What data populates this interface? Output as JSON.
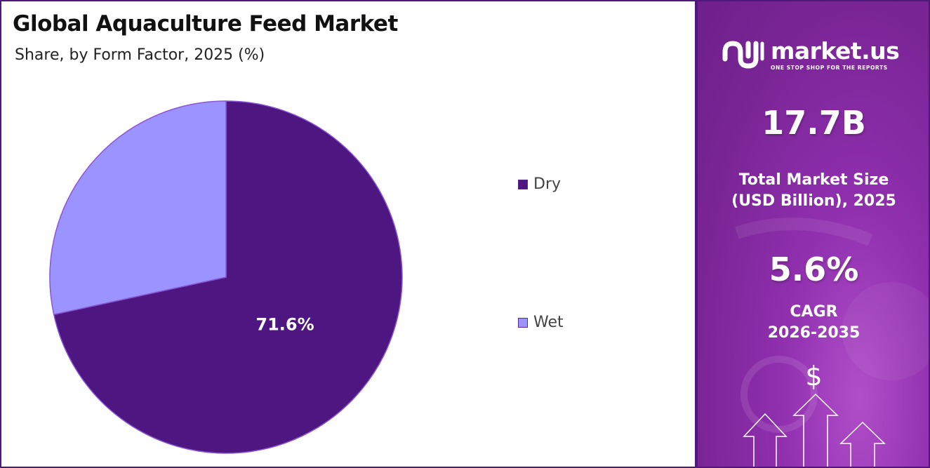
{
  "header": {
    "title": "Global Aquaculture Feed Market",
    "subtitle": "Share, by Form Factor, 2025 (%)"
  },
  "chart_data": {
    "type": "pie",
    "categories": [
      "Dry",
      "Wet"
    ],
    "values": [
      71.6,
      28.4
    ],
    "data_labels": [
      "71.6%",
      ""
    ],
    "colors": [
      "#4d1680",
      "#9b94ff"
    ],
    "legend_placement": "right"
  },
  "sidebar": {
    "brand": {
      "name": "market.us",
      "tagline": "ONE STOP SHOP FOR THE REPORTS"
    },
    "market_size": {
      "value": "17.7B",
      "label_line1": "Total Market Size",
      "label_line2": "(USD Billion), 2025"
    },
    "cagr": {
      "value": "5.6%",
      "label_line1": "CAGR",
      "label_line2": "2026-2035"
    },
    "currency_symbol": "$",
    "colors": {
      "panel": "#7a2596",
      "border": "#4b1a7a"
    }
  }
}
